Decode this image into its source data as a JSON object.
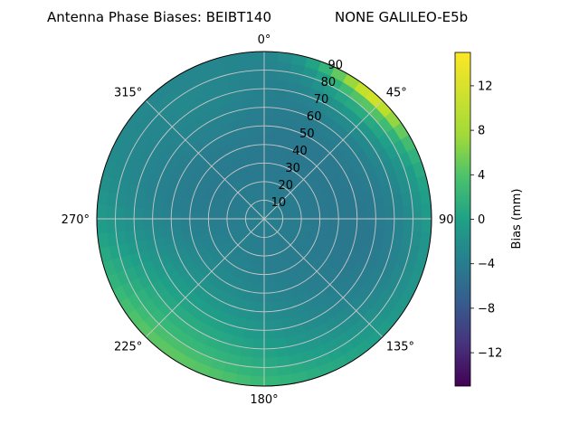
{
  "title_left": "Antenna Phase Biases: BEIBT140",
  "title_right": "NONE GALILEO-E5b",
  "chart_data": {
    "type": "heatmap",
    "projection": "polar",
    "title": "Antenna Phase Biases: BEIBT140        NONE GALILEO-E5b",
    "angle_ticks": [
      {
        "deg": 0,
        "label": "0°"
      },
      {
        "deg": 45,
        "label": "45°"
      },
      {
        "deg": 90,
        "label": "90"
      },
      {
        "deg": 135,
        "label": "135°"
      },
      {
        "deg": 180,
        "label": "180°"
      },
      {
        "deg": 225,
        "label": "225°"
      },
      {
        "deg": 270,
        "label": "270°"
      },
      {
        "deg": 315,
        "label": "315°"
      }
    ],
    "radial_ticks": [
      10,
      20,
      30,
      40,
      50,
      60,
      70,
      80,
      90
    ],
    "radial_range": [
      0,
      90
    ],
    "grid": true,
    "colormap": "viridis",
    "colorbar": {
      "label": "Bias (mm)",
      "range": [
        -15,
        15
      ],
      "ticks": [
        12,
        8,
        4,
        0,
        -4,
        -8,
        -12
      ],
      "tick_labels": [
        "12",
        "8",
        "4",
        "0",
        "−4",
        "−8",
        "−12"
      ],
      "placement": "right"
    },
    "bias_field_mm": {
      "center": -2,
      "ring_mid": -3,
      "north_east_edge": 12,
      "south_edge": 3,
      "south_west": 2,
      "west": -2,
      "east": -4
    }
  }
}
